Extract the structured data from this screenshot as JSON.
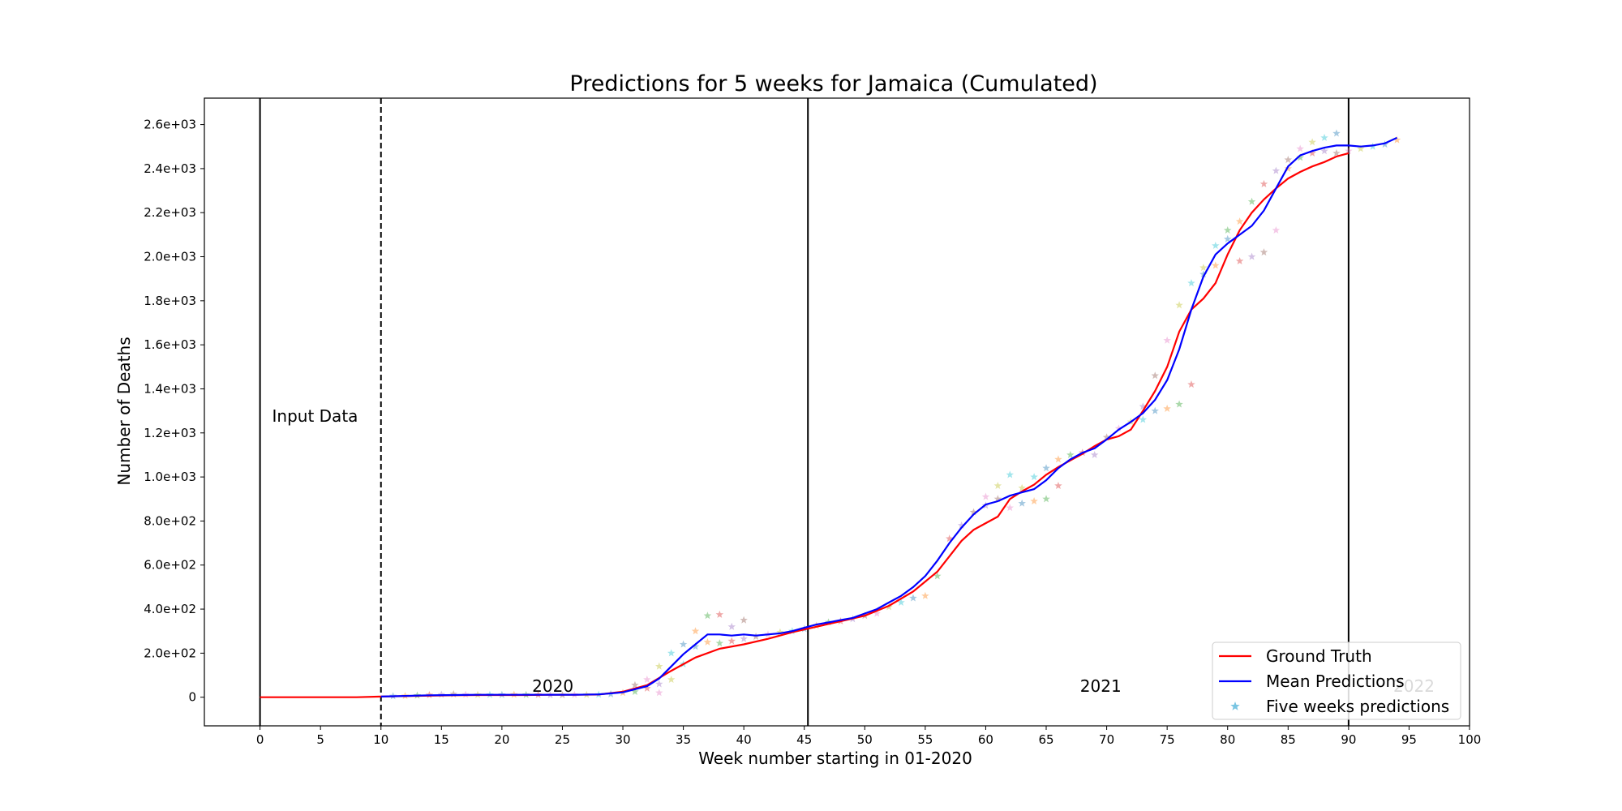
{
  "chart_data": {
    "type": "line",
    "title": "Predictions for 5 weeks for Jamaica (Cumulated)",
    "xlabel": "Week number starting in 01-2020",
    "ylabel": "Number of Deaths",
    "xlim": [
      -4.6,
      100
    ],
    "ylim": [
      -130,
      2720
    ],
    "x_ticks": [
      0,
      5,
      10,
      15,
      20,
      25,
      30,
      35,
      40,
      45,
      50,
      55,
      60,
      65,
      70,
      75,
      80,
      85,
      90,
      95,
      100
    ],
    "y_ticks": [
      0,
      200,
      400,
      600,
      800,
      1000,
      1200,
      1400,
      1600,
      1800,
      2000,
      2200,
      2400,
      2600
    ],
    "y_tick_labels": [
      "0",
      "2.0e+02",
      "4.0e+02",
      "6.0e+02",
      "8.0e+02",
      "1.0e+03",
      "1.2e+03",
      "1.4e+03",
      "1.6e+03",
      "1.8e+03",
      "2.0e+03",
      "2.2e+03",
      "2.4e+03",
      "2.6e+03"
    ],
    "grid": false,
    "legend_position": "lower-right",
    "vertical_lines": [
      {
        "x": 0,
        "style": "solid"
      },
      {
        "x": 10,
        "style": "dashed"
      },
      {
        "x": 45.3,
        "style": "solid"
      },
      {
        "x": 90,
        "style": "solid"
      }
    ],
    "annotations": [
      {
        "text": "Input Data",
        "x": 1,
        "y": 1250
      },
      {
        "text": "2020",
        "x": 22.5,
        "y": 25
      },
      {
        "text": "2021",
        "x": 67.8,
        "y": 25
      },
      {
        "text": "2022",
        "x": 93.7,
        "y": 25
      }
    ],
    "series": [
      {
        "name": "Ground Truth",
        "kind": "line",
        "color": "#ff0000",
        "points": [
          [
            0,
            0
          ],
          [
            2,
            0
          ],
          [
            4,
            0
          ],
          [
            6,
            0
          ],
          [
            8,
            0
          ],
          [
            10,
            3
          ],
          [
            12,
            5
          ],
          [
            14,
            7
          ],
          [
            16,
            9
          ],
          [
            18,
            10
          ],
          [
            20,
            10
          ],
          [
            22,
            10
          ],
          [
            24,
            11
          ],
          [
            26,
            11
          ],
          [
            28,
            12
          ],
          [
            30,
            25
          ],
          [
            32,
            55
          ],
          [
            34,
            120
          ],
          [
            36,
            180
          ],
          [
            38,
            220
          ],
          [
            40,
            240
          ],
          [
            42,
            265
          ],
          [
            44,
            295
          ],
          [
            46,
            320
          ],
          [
            48,
            345
          ],
          [
            50,
            370
          ],
          [
            52,
            415
          ],
          [
            54,
            480
          ],
          [
            56,
            570
          ],
          [
            58,
            710
          ],
          [
            59,
            760
          ],
          [
            60,
            790
          ],
          [
            61,
            820
          ],
          [
            62,
            900
          ],
          [
            63,
            935
          ],
          [
            64,
            965
          ],
          [
            65,
            1010
          ],
          [
            66,
            1045
          ],
          [
            67,
            1075
          ],
          [
            68,
            1105
          ],
          [
            69,
            1140
          ],
          [
            70,
            1170
          ],
          [
            71,
            1185
          ],
          [
            72,
            1215
          ],
          [
            73,
            1300
          ],
          [
            74,
            1390
          ],
          [
            75,
            1500
          ],
          [
            76,
            1660
          ],
          [
            77,
            1760
          ],
          [
            78,
            1810
          ],
          [
            79,
            1880
          ],
          [
            80,
            2010
          ],
          [
            81,
            2120
          ],
          [
            82,
            2200
          ],
          [
            83,
            2260
          ],
          [
            84,
            2310
          ],
          [
            85,
            2355
          ],
          [
            86,
            2385
          ],
          [
            87,
            2410
          ],
          [
            88,
            2430
          ],
          [
            89,
            2455
          ],
          [
            90,
            2470
          ]
        ]
      },
      {
        "name": "Mean Predictions",
        "kind": "line",
        "color": "#0000ff",
        "points": [
          [
            10,
            3
          ],
          [
            12,
            6
          ],
          [
            14,
            9
          ],
          [
            16,
            10
          ],
          [
            18,
            11
          ],
          [
            20,
            11
          ],
          [
            22,
            11
          ],
          [
            24,
            11
          ],
          [
            26,
            11
          ],
          [
            28,
            13
          ],
          [
            30,
            22
          ],
          [
            32,
            50
          ],
          [
            33,
            85
          ],
          [
            34,
            140
          ],
          [
            35,
            195
          ],
          [
            36,
            240
          ],
          [
            37,
            285
          ],
          [
            38,
            285
          ],
          [
            39,
            280
          ],
          [
            40,
            285
          ],
          [
            41,
            280
          ],
          [
            42,
            285
          ],
          [
            43,
            290
          ],
          [
            44,
            300
          ],
          [
            45,
            315
          ],
          [
            46,
            330
          ],
          [
            47,
            340
          ],
          [
            48,
            350
          ],
          [
            49,
            360
          ],
          [
            50,
            380
          ],
          [
            51,
            400
          ],
          [
            52,
            430
          ],
          [
            53,
            460
          ],
          [
            54,
            500
          ],
          [
            55,
            550
          ],
          [
            56,
            620
          ],
          [
            57,
            700
          ],
          [
            58,
            770
          ],
          [
            59,
            830
          ],
          [
            60,
            875
          ],
          [
            61,
            890
          ],
          [
            62,
            915
          ],
          [
            63,
            930
          ],
          [
            64,
            945
          ],
          [
            65,
            985
          ],
          [
            66,
            1040
          ],
          [
            67,
            1080
          ],
          [
            68,
            1110
          ],
          [
            69,
            1130
          ],
          [
            70,
            1170
          ],
          [
            71,
            1215
          ],
          [
            72,
            1250
          ],
          [
            73,
            1290
          ],
          [
            74,
            1350
          ],
          [
            75,
            1440
          ],
          [
            76,
            1580
          ],
          [
            77,
            1760
          ],
          [
            78,
            1910
          ],
          [
            79,
            2010
          ],
          [
            80,
            2060
          ],
          [
            81,
            2100
          ],
          [
            82,
            2140
          ],
          [
            83,
            2210
          ],
          [
            84,
            2310
          ],
          [
            85,
            2410
          ],
          [
            86,
            2460
          ],
          [
            87,
            2480
          ],
          [
            88,
            2495
          ],
          [
            89,
            2505
          ],
          [
            90,
            2505
          ],
          [
            91,
            2500
          ],
          [
            92,
            2505
          ],
          [
            93,
            2515
          ],
          [
            94,
            2540
          ]
        ]
      },
      {
        "name": "Five weeks predictions",
        "kind": "scatter",
        "marker": "star",
        "points": [
          [
            11,
            5
          ],
          [
            12,
            6
          ],
          [
            13,
            8
          ],
          [
            14,
            10
          ],
          [
            15,
            12
          ],
          [
            16,
            14
          ],
          [
            17,
            12
          ],
          [
            18,
            11
          ],
          [
            19,
            11
          ],
          [
            20,
            11
          ],
          [
            21,
            12
          ],
          [
            22,
            11
          ],
          [
            23,
            11
          ],
          [
            24,
            10
          ],
          [
            25,
            10
          ],
          [
            26,
            11
          ],
          [
            27,
            11
          ],
          [
            28,
            12
          ],
          [
            29,
            14
          ],
          [
            30,
            20
          ],
          [
            31,
            25
          ],
          [
            32,
            40
          ],
          [
            33,
            60
          ],
          [
            31,
            55
          ],
          [
            32,
            80
          ],
          [
            33,
            140
          ],
          [
            34,
            200
          ],
          [
            35,
            240
          ],
          [
            36,
            300
          ],
          [
            37,
            370
          ],
          [
            38,
            375
          ],
          [
            39,
            320
          ],
          [
            40,
            350
          ],
          [
            33,
            20
          ],
          [
            34,
            80
          ],
          [
            35,
            150
          ],
          [
            36,
            230
          ],
          [
            37,
            250
          ],
          [
            38,
            245
          ],
          [
            39,
            255
          ],
          [
            40,
            265
          ],
          [
            41,
            275
          ],
          [
            42,
            285
          ],
          [
            43,
            295
          ],
          [
            44,
            300
          ],
          [
            45,
            310
          ],
          [
            46,
            325
          ],
          [
            47,
            340
          ],
          [
            48,
            345
          ],
          [
            49,
            355
          ],
          [
            50,
            370
          ],
          [
            51,
            380
          ],
          [
            52,
            410
          ],
          [
            53,
            430
          ],
          [
            54,
            450
          ],
          [
            55,
            460
          ],
          [
            56,
            550
          ],
          [
            57,
            720
          ],
          [
            58,
            780
          ],
          [
            59,
            840
          ],
          [
            60,
            910
          ],
          [
            61,
            960
          ],
          [
            62,
            1010
          ],
          [
            63,
            880
          ],
          [
            64,
            890
          ],
          [
            65,
            900
          ],
          [
            66,
            960
          ],
          [
            60,
            870
          ],
          [
            61,
            900
          ],
          [
            62,
            860
          ],
          [
            63,
            950
          ],
          [
            64,
            1000
          ],
          [
            65,
            1040
          ],
          [
            66,
            1080
          ],
          [
            67,
            1100
          ],
          [
            68,
            1110
          ],
          [
            69,
            1100
          ],
          [
            70,
            1180
          ],
          [
            71,
            1220
          ],
          [
            72,
            1250
          ],
          [
            73,
            1260
          ],
          [
            74,
            1300
          ],
          [
            75,
            1310
          ],
          [
            76,
            1330
          ],
          [
            77,
            1420
          ],
          [
            73,
            1320
          ],
          [
            74,
            1460
          ],
          [
            75,
            1620
          ],
          [
            76,
            1780
          ],
          [
            77,
            1880
          ],
          [
            78,
            1920
          ],
          [
            79,
            1960
          ],
          [
            80,
            2120
          ],
          [
            81,
            1980
          ],
          [
            82,
            2000
          ],
          [
            83,
            2020
          ],
          [
            84,
            2120
          ],
          [
            78,
            1950
          ],
          [
            79,
            2050
          ],
          [
            80,
            2080
          ],
          [
            81,
            2160
          ],
          [
            82,
            2250
          ],
          [
            83,
            2330
          ],
          [
            84,
            2390
          ],
          [
            85,
            2440
          ],
          [
            86,
            2490
          ],
          [
            87,
            2520
          ],
          [
            88,
            2540
          ],
          [
            89,
            2560
          ],
          [
            85,
            2400
          ],
          [
            86,
            2450
          ],
          [
            87,
            2470
          ],
          [
            88,
            2480
          ],
          [
            89,
            2470
          ],
          [
            90,
            2480
          ],
          [
            91,
            2490
          ],
          [
            92,
            2500
          ],
          [
            93,
            2510
          ],
          [
            94,
            2530
          ]
        ]
      }
    ],
    "marker_colors": [
      "#1f77b4",
      "#ff7f0e",
      "#2ca02c",
      "#d62728",
      "#9467bd",
      "#8c564b",
      "#e377c2",
      "#bcbd22",
      "#17becf"
    ]
  }
}
